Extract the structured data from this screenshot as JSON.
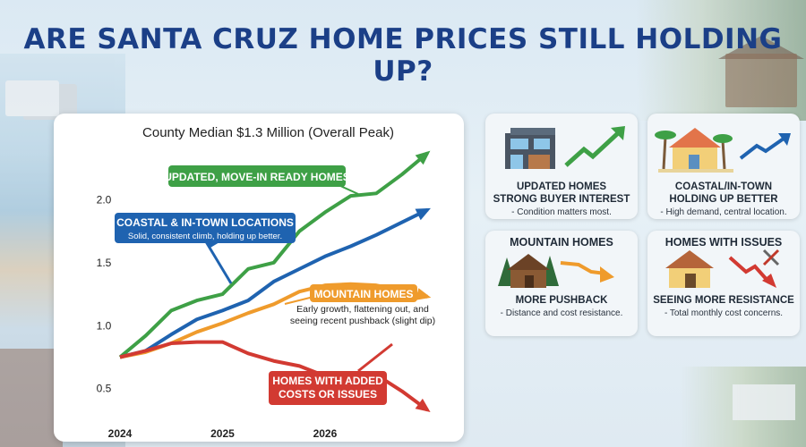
{
  "headline": "ARE SANTA CRUZ HOME PRICES STILL HOLDING UP?",
  "colors": {
    "green": "#3ea046",
    "blue": "#1f63b0",
    "orange": "#ef9b2c",
    "red": "#d23a32",
    "title": "#1b3f87"
  },
  "chart_data": {
    "type": "line",
    "title": "County Median $1.3 Million (Overall Peak)",
    "xlabel": "",
    "ylabel": "",
    "x_ticks": [
      "2024",
      "2025",
      "2026"
    ],
    "y_ticks": [
      "0.5",
      "1.0",
      "1.5",
      "2.0"
    ],
    "x": [
      2024.0,
      2024.25,
      2024.5,
      2024.75,
      2025.0,
      2025.25,
      2025.5,
      2025.75,
      2026.0,
      2026.25,
      2026.5,
      2026.75,
      2027.0
    ],
    "xlim": [
      2024.0,
      2027.25
    ],
    "ylim": [
      0.2,
      2.4
    ],
    "grid": false,
    "series": [
      {
        "name": "UPDATED, MOVE-IN READY HOMES",
        "color": "#3ea046",
        "values": [
          0.75,
          0.92,
          1.12,
          1.2,
          1.25,
          1.45,
          1.5,
          1.75,
          1.9,
          2.03,
          2.05,
          2.2,
          2.37
        ]
      },
      {
        "name": "COASTAL & IN-TOWN LOCATIONS",
        "color": "#1f63b0",
        "values": [
          0.75,
          0.8,
          0.93,
          1.05,
          1.12,
          1.2,
          1.35,
          1.45,
          1.55,
          1.63,
          1.72,
          1.82,
          1.92
        ]
      },
      {
        "name": "MOUNTAIN HOMES",
        "color": "#ef9b2c",
        "values": [
          0.75,
          0.79,
          0.86,
          0.95,
          1.02,
          1.1,
          1.17,
          1.27,
          1.32,
          1.33,
          1.32,
          1.28,
          1.23
        ]
      },
      {
        "name": "HOMES WITH ADDED COSTS OR ISSUES",
        "color": "#d23a32",
        "values": [
          0.75,
          0.8,
          0.86,
          0.87,
          0.87,
          0.78,
          0.72,
          0.68,
          0.6,
          0.61,
          0.61,
          0.48,
          0.33
        ]
      }
    ],
    "annotations": {
      "green_label": "UPDATED, MOVE-IN READY HOMES",
      "blue_label": "COASTAL & IN-TOWN LOCATIONS",
      "blue_sub": "Solid, consistent climb, holding up better.",
      "orange_label": "MOUNTAIN HOMES",
      "orange_sub1": "Early growth, flattening out, and",
      "orange_sub2": "seeing recent pushback (slight dip)",
      "red_label1": "HOMES WITH ADDED",
      "red_label2": "COSTS OR ISSUES"
    }
  },
  "cards": [
    {
      "line1": "UPDATED HOMES",
      "line2": "STRONG BUYER INTEREST",
      "line3": "- Condition matters most.",
      "icon": "modern-house-icon",
      "trend": "up"
    },
    {
      "line1": "COASTAL/IN-TOWN",
      "line2": "HOLDING UP BETTER",
      "line3": "- High demand, central location.",
      "icon": "palm-house-icon",
      "trend": "up"
    },
    {
      "head": "MOUNTAIN HOMES",
      "line2": "MORE PUSHBACK",
      "line3": "- Distance and cost resistance.",
      "icon": "cabin-icon",
      "trend": "down"
    },
    {
      "head": "HOMES WITH ISSUES",
      "line2": "SEEING MORE RESISTANCE",
      "line3": "- Total monthly cost concerns.",
      "icon": "house-tools-icon",
      "trend": "down"
    }
  ]
}
